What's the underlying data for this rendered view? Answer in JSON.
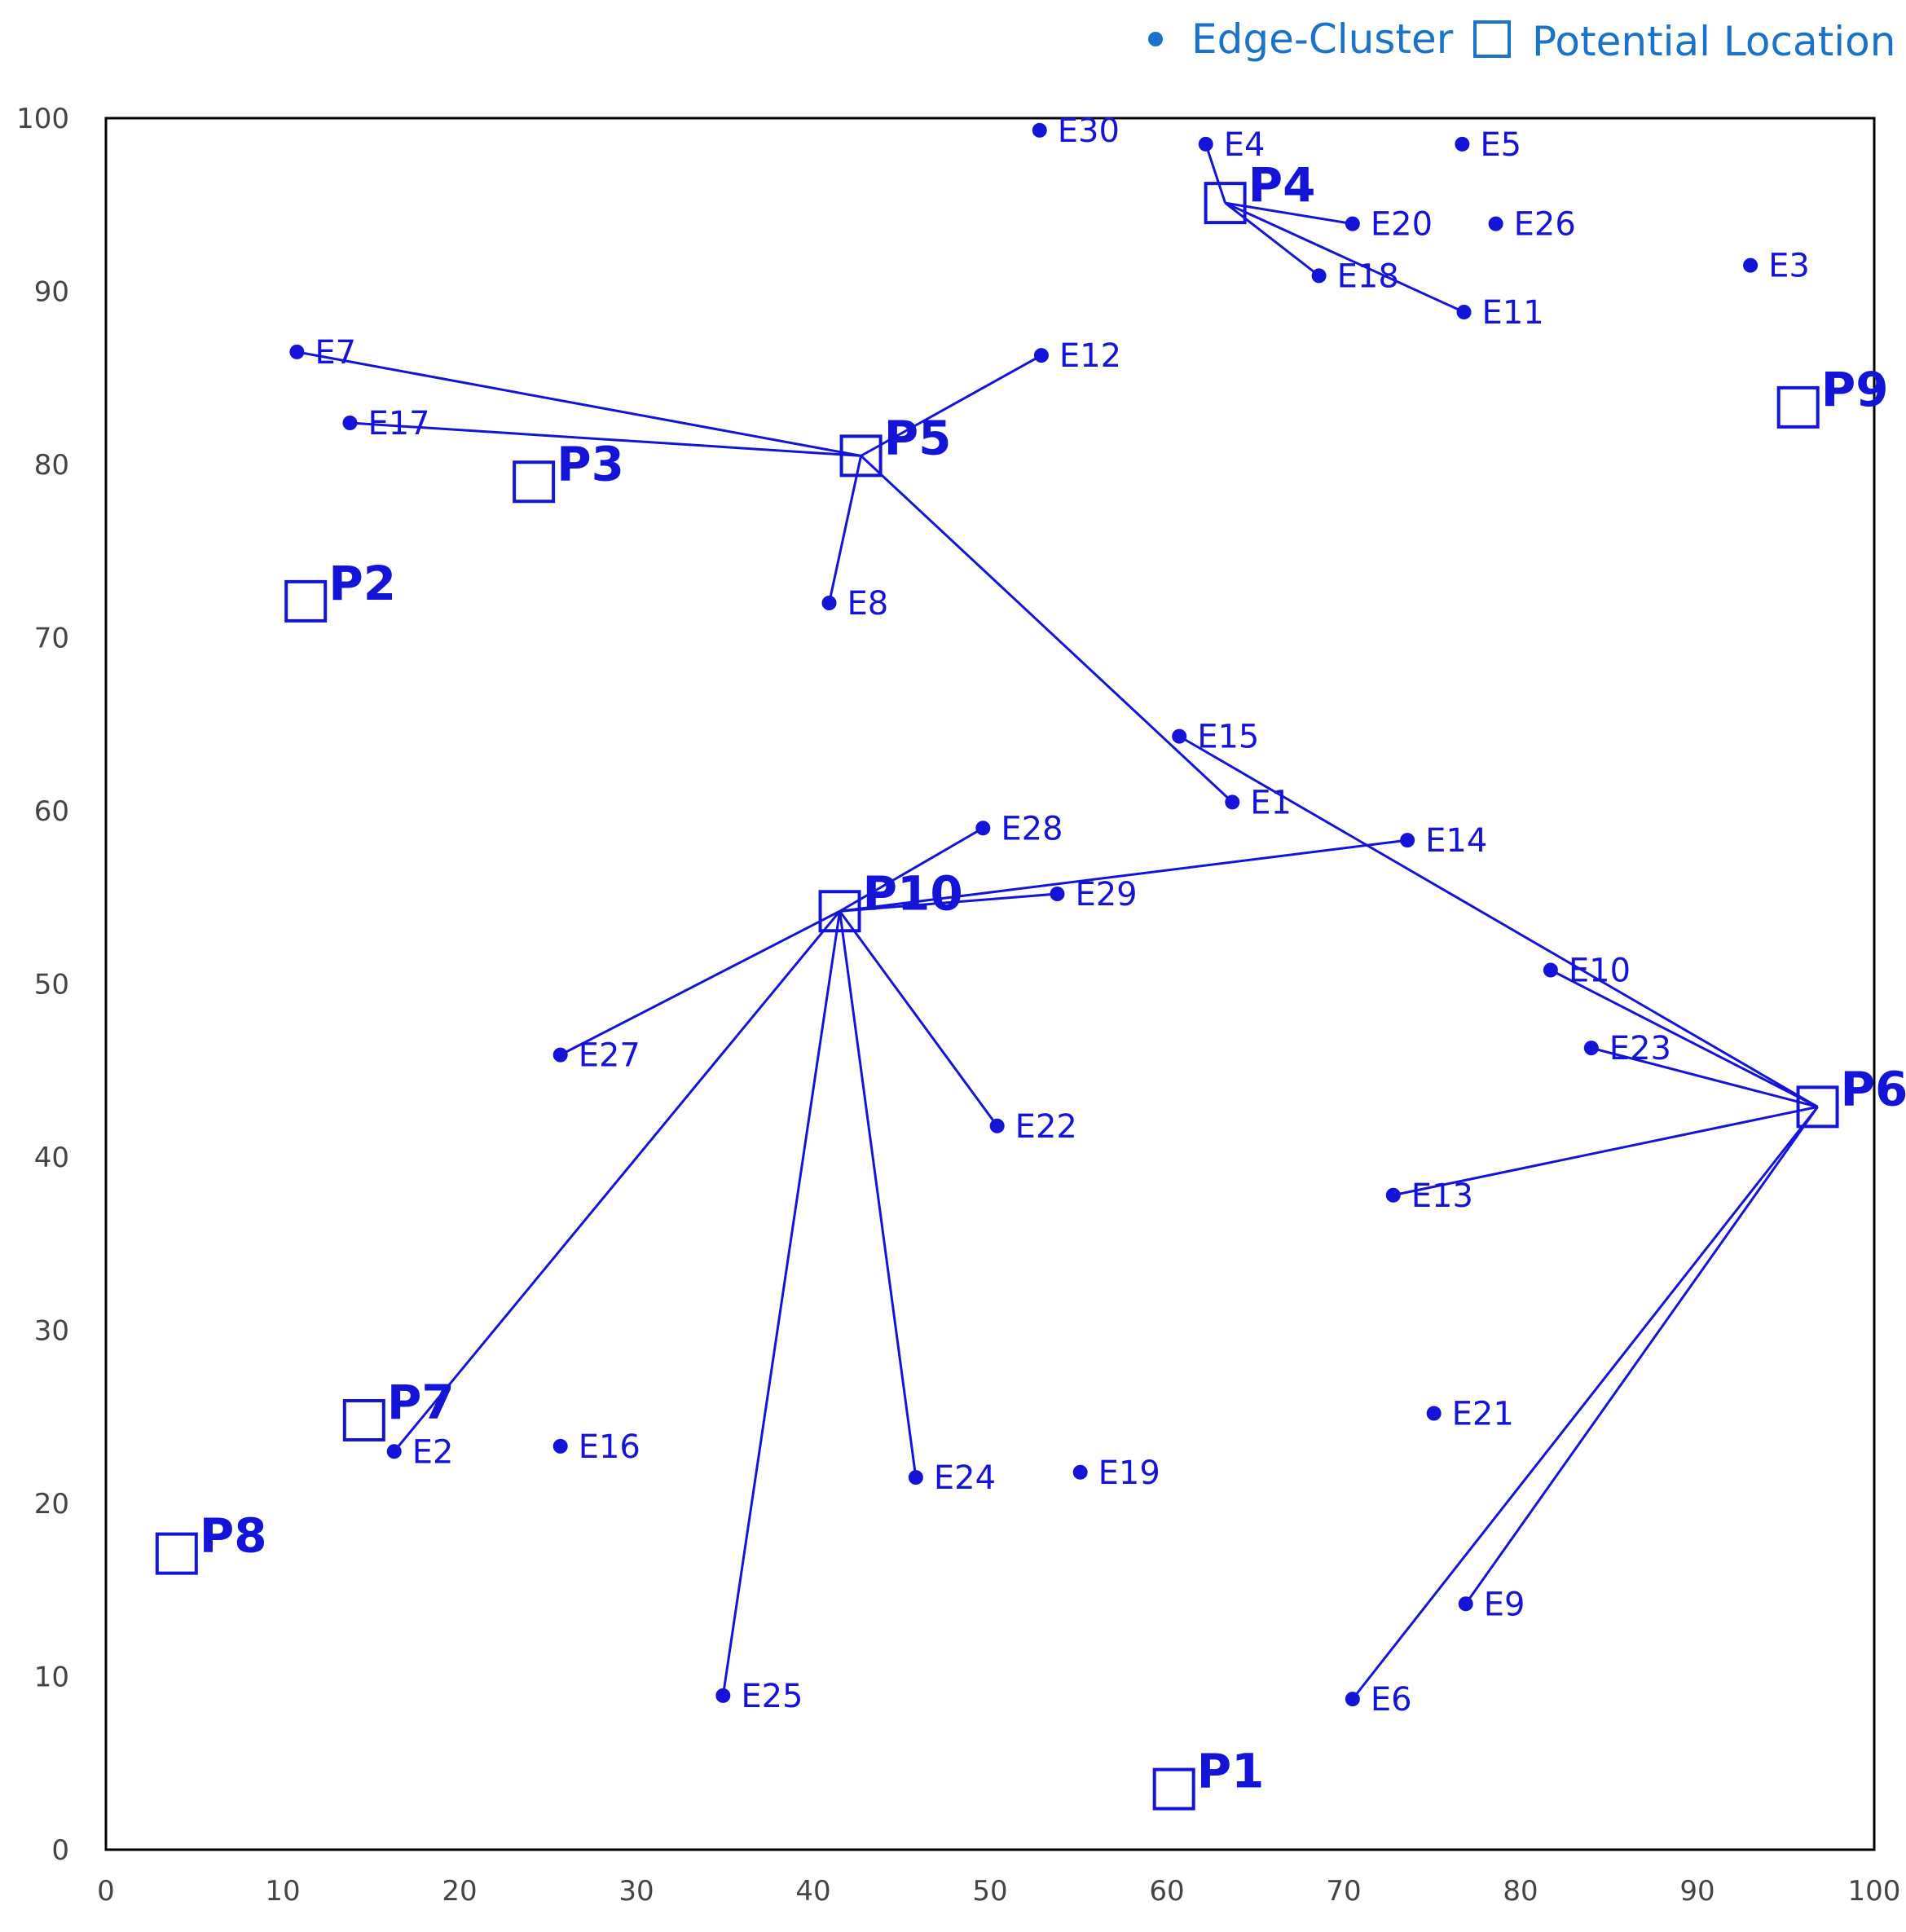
{
  "chart_data": {
    "type": "scatter",
    "title": "",
    "xlabel": "",
    "ylabel": "",
    "xlim": [
      0,
      100
    ],
    "ylim": [
      0,
      100
    ],
    "x_ticks": [
      "0",
      "10",
      "20",
      "30",
      "40",
      "50",
      "60",
      "70",
      "80",
      "90",
      "100"
    ],
    "y_ticks": [
      "0",
      "10",
      "20",
      "30",
      "40",
      "50",
      "60",
      "70",
      "80",
      "90",
      "100"
    ],
    "grid": false,
    "legend_position": "top-right",
    "legend": {
      "edge_cluster": "Edge-Cluster",
      "potential_location": "Potential Location"
    },
    "colors": {
      "plot": "#1414d8",
      "legend": "#1a73c8",
      "axis": "#000000",
      "tick_text": "#444444"
    },
    "edge_clusters": [
      {
        "label": "E1",
        "x": 63.7,
        "y": 60.5
      },
      {
        "label": "E2",
        "x": 16.3,
        "y": 23.0
      },
      {
        "label": "E3",
        "x": 93.0,
        "y": 91.5
      },
      {
        "label": "E4",
        "x": 62.2,
        "y": 98.5
      },
      {
        "label": "E5",
        "x": 76.7,
        "y": 98.5
      },
      {
        "label": "E6",
        "x": 70.5,
        "y": 8.7
      },
      {
        "label": "E7",
        "x": 10.8,
        "y": 86.5
      },
      {
        "label": "E8",
        "x": 40.9,
        "y": 72.0
      },
      {
        "label": "E9",
        "x": 76.9,
        "y": 14.2
      },
      {
        "label": "E10",
        "x": 81.7,
        "y": 50.8
      },
      {
        "label": "E11",
        "x": 76.8,
        "y": 88.8
      },
      {
        "label": "E12",
        "x": 52.9,
        "y": 86.3
      },
      {
        "label": "E13",
        "x": 72.8,
        "y": 37.8
      },
      {
        "label": "E14",
        "x": 73.6,
        "y": 58.3
      },
      {
        "label": "E15",
        "x": 60.7,
        "y": 64.3
      },
      {
        "label": "E16",
        "x": 25.7,
        "y": 23.3
      },
      {
        "label": "E17",
        "x": 13.8,
        "y": 82.4
      },
      {
        "label": "E18",
        "x": 68.6,
        "y": 90.9
      },
      {
        "label": "E19",
        "x": 55.1,
        "y": 21.8
      },
      {
        "label": "E20",
        "x": 70.5,
        "y": 93.9
      },
      {
        "label": "E21",
        "x": 75.1,
        "y": 25.2
      },
      {
        "label": "E22",
        "x": 50.4,
        "y": 41.8
      },
      {
        "label": "E23",
        "x": 84.0,
        "y": 46.3
      },
      {
        "label": "E24",
        "x": 45.8,
        "y": 21.5
      },
      {
        "label": "E25",
        "x": 34.9,
        "y": 8.9
      },
      {
        "label": "E26",
        "x": 78.6,
        "y": 93.9
      },
      {
        "label": "E27",
        "x": 25.7,
        "y": 45.9
      },
      {
        "label": "E28",
        "x": 49.6,
        "y": 59.0
      },
      {
        "label": "E29",
        "x": 53.8,
        "y": 55.2
      },
      {
        "label": "E30",
        "x": 52.8,
        "y": 99.3
      }
    ],
    "potential_locations": [
      {
        "label": "P1",
        "x": 60.4,
        "y": 3.5
      },
      {
        "label": "P2",
        "x": 11.3,
        "y": 72.1
      },
      {
        "label": "P3",
        "x": 24.2,
        "y": 79.0
      },
      {
        "label": "P4",
        "x": 63.3,
        "y": 95.1
      },
      {
        "label": "P5",
        "x": 42.7,
        "y": 80.5
      },
      {
        "label": "P6",
        "x": 96.8,
        "y": 42.9
      },
      {
        "label": "P7",
        "x": 14.6,
        "y": 24.8
      },
      {
        "label": "P8",
        "x": 4.0,
        "y": 17.1
      },
      {
        "label": "P9",
        "x": 95.7,
        "y": 83.3
      },
      {
        "label": "P10",
        "x": 41.5,
        "y": 54.2
      }
    ],
    "connections": [
      {
        "from": "P4",
        "to": "E4"
      },
      {
        "from": "P4",
        "to": "E20"
      },
      {
        "from": "P4",
        "to": "E18"
      },
      {
        "from": "P4",
        "to": "E11"
      },
      {
        "from": "P5",
        "to": "E7"
      },
      {
        "from": "P5",
        "to": "E17"
      },
      {
        "from": "P5",
        "to": "E12"
      },
      {
        "from": "P5",
        "to": "E8"
      },
      {
        "from": "P5",
        "to": "E1"
      },
      {
        "from": "P6",
        "to": "E15"
      },
      {
        "from": "P6",
        "to": "E10"
      },
      {
        "from": "P6",
        "to": "E23"
      },
      {
        "from": "P6",
        "to": "E13"
      },
      {
        "from": "P6",
        "to": "E6"
      },
      {
        "from": "P6",
        "to": "E9"
      },
      {
        "from": "P10",
        "to": "E28"
      },
      {
        "from": "P10",
        "to": "E29"
      },
      {
        "from": "P10",
        "to": "E14"
      },
      {
        "from": "P10",
        "to": "E27"
      },
      {
        "from": "P10",
        "to": "E22"
      },
      {
        "from": "P10",
        "to": "E2"
      },
      {
        "from": "P10",
        "to": "E24"
      },
      {
        "from": "P10",
        "to": "E25"
      }
    ]
  }
}
